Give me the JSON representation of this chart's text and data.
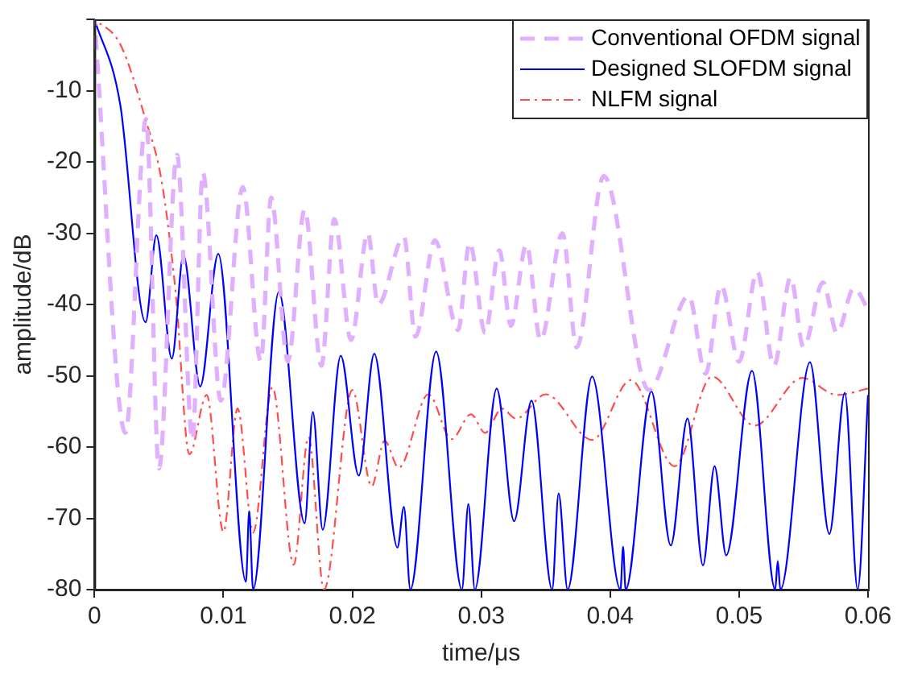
{
  "chart_data": {
    "type": "line",
    "xlabel": "time/μs",
    "ylabel": "amplitude/dB",
    "xlim": [
      0,
      0.06
    ],
    "ylim": [
      -80,
      0
    ],
    "xticks": [
      0,
      0.01,
      0.02,
      0.03,
      0.04,
      0.05,
      0.06
    ],
    "yticks": [
      -80,
      -70,
      -60,
      -50,
      -40,
      -30,
      -20,
      -10,
      {
        "value": 0,
        "label": null
      }
    ],
    "grid": false,
    "legend": "top right",
    "marker": "none",
    "series": [
      {
        "name": "Conventional OFDM signal",
        "color": "#e0b0ff",
        "line_style": "dashed",
        "x": [
          0,
          0.0024,
          0.004,
          0.005,
          0.0064,
          0.0076,
          0.0084,
          0.0098,
          0.0115,
          0.0129,
          0.0137,
          0.015,
          0.0163,
          0.0176,
          0.0186,
          0.0199,
          0.0212,
          0.022,
          0.024,
          0.0249,
          0.0264,
          0.0282,
          0.0291,
          0.0303,
          0.0314,
          0.0323,
          0.0335,
          0.0346,
          0.0363,
          0.0374,
          0.0395,
          0.043,
          0.0461,
          0.0474,
          0.0486,
          0.05,
          0.0514,
          0.0527,
          0.054,
          0.055,
          0.0565,
          0.0576,
          0.0589,
          0.06
        ],
        "values": [
          0,
          -58,
          -14,
          -63,
          -19,
          -59,
          -21.5,
          -53.5,
          -23.5,
          -48,
          -25,
          -48,
          -26.7,
          -48.6,
          -28,
          -45,
          -30,
          -40,
          -30.5,
          -44.5,
          -31,
          -43.6,
          -31.3,
          -44,
          -32.4,
          -43,
          -31.6,
          -45,
          -30,
          -46,
          -22,
          -52,
          -38.8,
          -49.7,
          -37.3,
          -48,
          -35.4,
          -48.6,
          -36.2,
          -46,
          -36.9,
          -44,
          -37.7,
          -40.7
        ]
      },
      {
        "name": "Designed SLOFDM signal",
        "color": "#0000ff",
        "line_style": "solid",
        "x": [
          0,
          0.002,
          0.00396,
          0.0048,
          0.006,
          0.0069,
          0.0082,
          0.0096,
          0.01175,
          0.012,
          0.0123,
          0.0143,
          0.0163,
          0.01694,
          0.0177,
          0.0191,
          0.0205,
          0.0217,
          0.0235,
          0.024,
          0.0245,
          0.0265,
          0.0285,
          0.029,
          0.0295,
          0.0312,
          0.03255,
          0.0339,
          0.0355,
          0.036,
          0.0367,
          0.0386,
          0.0408,
          0.041,
          0.0412,
          0.0432,
          0.0447,
          0.046,
          0.0472,
          0.0481,
          0.049,
          0.051,
          0.0528,
          0.053,
          0.0532,
          0.0555,
          0.057,
          0.0582,
          0.0592,
          0.06
        ],
        "values": [
          0,
          -12,
          -42.5,
          -30.3,
          -47.6,
          -33.1,
          -51.5,
          -32.9,
          -78.9,
          -69,
          -80,
          -38.2,
          -70.7,
          -55.1,
          -71.6,
          -47.2,
          -64,
          -46.9,
          -74.1,
          -68.4,
          -80,
          -46.6,
          -80,
          -68,
          -80,
          -51.8,
          -70.4,
          -53.5,
          -80,
          -66.5,
          -80,
          -50.1,
          -80,
          -74,
          -80,
          -52.2,
          -73.8,
          -56,
          -76.6,
          -62.7,
          -75.2,
          -49.3,
          -80,
          -76,
          -80,
          -48.1,
          -72.2,
          -52.4,
          -80,
          -52.7
        ]
      },
      {
        "name": "NLFM signal",
        "color": "#ff4d4d",
        "line_style": "dashdot",
        "x": [
          0,
          0.002,
          0.004,
          0.0052,
          0.0063,
          0.00736,
          0.0087,
          0.01,
          0.0111,
          0.0123,
          0.0138,
          0.01545,
          0.0166,
          0.0178,
          0.02,
          0.0215,
          0.0225,
          0.0236,
          0.0259,
          0.0277,
          0.0292,
          0.0303,
          0.0316,
          0.0327,
          0.035,
          0.0386,
          0.0416,
          0.045,
          0.0479,
          0.0512,
          0.0549,
          0.0576,
          0.06
        ],
        "values": [
          0,
          -3.5,
          -14.3,
          -22.6,
          -38.4,
          -61,
          -52.7,
          -71.9,
          -54.6,
          -72,
          -51.6,
          -76.5,
          -58.6,
          -80,
          -52,
          -65.5,
          -59.1,
          -62.9,
          -52.6,
          -58.9,
          -55.4,
          -58,
          -54.6,
          -56,
          -52.6,
          -59,
          -50.6,
          -62.7,
          -50.1,
          -57,
          -50.3,
          -52.7,
          -51.8
        ]
      }
    ]
  }
}
